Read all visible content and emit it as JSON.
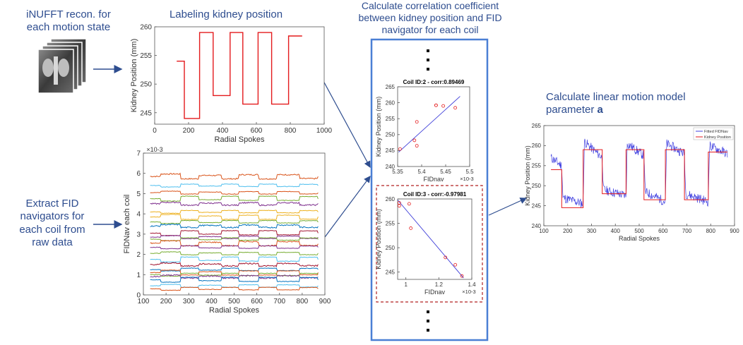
{
  "labels": {
    "inufft": "iNUFFT recon. for each motion state",
    "labeling": "Labeling kidney position",
    "extract": "Extract FID navigators for each coil from raw data",
    "correlation": "Calculate correlation coefficient between kidney position and FID navigator for each coil",
    "linear_model_prefix": "Calculate linear motion model parameter ",
    "linear_model_param": "a"
  },
  "colors": {
    "label_text": "#2e4d8f",
    "panel_border": "#4a7fd4",
    "dashed_box": "#b22222",
    "arrow": "#2e4d8f"
  },
  "chart_data": [
    {
      "id": "kidney-position-chart",
      "type": "line",
      "title": "",
      "xlabel": "Radial Spokes",
      "ylabel": "Kidney Position (mm)",
      "xlim": [
        0,
        1000
      ],
      "ylim": [
        243,
        260
      ],
      "xticks": [
        0,
        200,
        400,
        600,
        800,
        1000
      ],
      "yticks": [
        245,
        250,
        255,
        260
      ],
      "grid": false,
      "series": [
        {
          "color": "#e41a1c",
          "x": [
            130,
            175,
            175,
            265,
            265,
            345,
            345,
            445,
            445,
            520,
            520,
            610,
            610,
            690,
            690,
            790,
            790,
            825,
            825,
            870
          ],
          "y": [
            254,
            254,
            244,
            244,
            259,
            259,
            248,
            248,
            259,
            259,
            246.5,
            246.5,
            259,
            259,
            246.5,
            246.5,
            258.4,
            258.4,
            258.4,
            258.4
          ]
        }
      ]
    },
    {
      "id": "fidnav-chart",
      "type": "line",
      "title": "",
      "xlabel": "Radial Spokes",
      "ylabel": "FIDNav each coil",
      "y_exponent": "×10-3",
      "xlim": [
        100,
        900
      ],
      "ylim": [
        0,
        7
      ],
      "xticks": [
        100,
        200,
        300,
        400,
        500,
        600,
        700,
        800,
        900
      ],
      "yticks": [
        0,
        1,
        2,
        3,
        4,
        5,
        6,
        7
      ],
      "grid": false,
      "series_levels": [
        5.85,
        5.4,
        5.05,
        4.75,
        4.5,
        4.1,
        3.85,
        3.6,
        3.4,
        3.05,
        2.85,
        2.75,
        2.55,
        2.35,
        2.05,
        1.75,
        1.5,
        1.25,
        1.1,
        1.0,
        0.9,
        0.75,
        0.45,
        0.3
      ],
      "series_colors": [
        "#d95319",
        "#4dbeee",
        "#d95319",
        "#77ac30",
        "#7e2f8e",
        "#edb120",
        "#edb120",
        "#77ac30",
        "#0072bd",
        "#a2142f",
        "#7e2f8e",
        "#77ac30",
        "#d95319",
        "#7e2f8e",
        "#77ac30",
        "#4dbeee",
        "#a2142f",
        "#0072bd",
        "#d95319",
        "#77ac30",
        "#7e2f8e",
        "#0072bd",
        "#4dbeee",
        "#d95319"
      ]
    },
    {
      "id": "coil2-scatter",
      "type": "scatter",
      "title": "Coil ID:2  -   corr:0.89469",
      "xlabel": "FIDnav",
      "ylabel": "Kidney Position (mm)",
      "x_exponent": "×10-3",
      "xlim": [
        5.35,
        5.5
      ],
      "ylim": [
        240,
        265
      ],
      "xticks": [
        5.35,
        5.4,
        5.45,
        5.5
      ],
      "xticklabels": [
        "5.35",
        "5.4",
        "5.45",
        "5.5"
      ],
      "yticks": [
        240,
        245,
        250,
        255,
        260,
        265
      ],
      "points_x": [
        5.355,
        5.385,
        5.39,
        5.39,
        5.43,
        5.43,
        5.445,
        5.47
      ],
      "points_y": [
        245.5,
        248.2,
        254,
        246.5,
        259.2,
        259.2,
        259,
        258.4
      ],
      "fit": [
        [
          5.352,
          244.5
        ],
        [
          5.48,
          262
        ]
      ]
    },
    {
      "id": "coil3-scatter",
      "type": "scatter",
      "title": "Coil ID:3  -   corr:-0.97981",
      "xlabel": "FIDnav",
      "ylabel": "Kidney Position (mm)",
      "x_exponent": "×10-3",
      "xlim": [
        0.95,
        1.4
      ],
      "ylim": [
        243.5,
        260
      ],
      "xticks": [
        1.0,
        1.2,
        1.4
      ],
      "xticklabels": [
        "1",
        "1.2",
        "1.4"
      ],
      "yticks": [
        245,
        250,
        255,
        260
      ],
      "points_x": [
        0.96,
        0.96,
        1.02,
        1.03,
        1.24,
        1.3,
        1.34
      ],
      "points_y": [
        259.2,
        258.6,
        259,
        254,
        248,
        246.5,
        244.2
      ],
      "fit": [
        [
          0.95,
          259.8
        ],
        [
          1.35,
          243.8
        ]
      ]
    },
    {
      "id": "linear-model-chart",
      "type": "line",
      "title": "",
      "xlabel": "Radial Spokes",
      "ylabel": "Kidney Position (mm)",
      "xlim": [
        100,
        900
      ],
      "ylim": [
        240,
        265
      ],
      "xticks": [
        100,
        200,
        300,
        400,
        500,
        600,
        700,
        800,
        900
      ],
      "yticks": [
        240,
        245,
        250,
        255,
        260,
        265
      ],
      "legend": {
        "position": "top-right",
        "entries": [
          "Fitted FIDNav",
          "Kidney Position"
        ]
      },
      "series": [
        {
          "name": "Fitted FIDNav",
          "color": "#4040e0",
          "x": [
            130,
            175,
            180,
            265,
            270,
            345,
            350,
            445,
            450,
            520,
            525,
            610,
            615,
            690,
            695,
            790,
            795,
            870
          ],
          "y": [
            257,
            255,
            247,
            245.5,
            261,
            257,
            249,
            247.5,
            260.5,
            257.5,
            248.5,
            246,
            260.5,
            258,
            248,
            246,
            260,
            258
          ]
        },
        {
          "name": "Kidney Position",
          "color": "#e41a1c",
          "x": [
            130,
            175,
            175,
            265,
            265,
            345,
            345,
            445,
            445,
            520,
            520,
            610,
            610,
            690,
            690,
            790,
            790,
            870
          ],
          "y": [
            254,
            254,
            244.5,
            244.5,
            259,
            259,
            248,
            248,
            259,
            259,
            246.5,
            246.5,
            259,
            259,
            246.5,
            246.5,
            258.4,
            258.4
          ]
        }
      ]
    }
  ]
}
